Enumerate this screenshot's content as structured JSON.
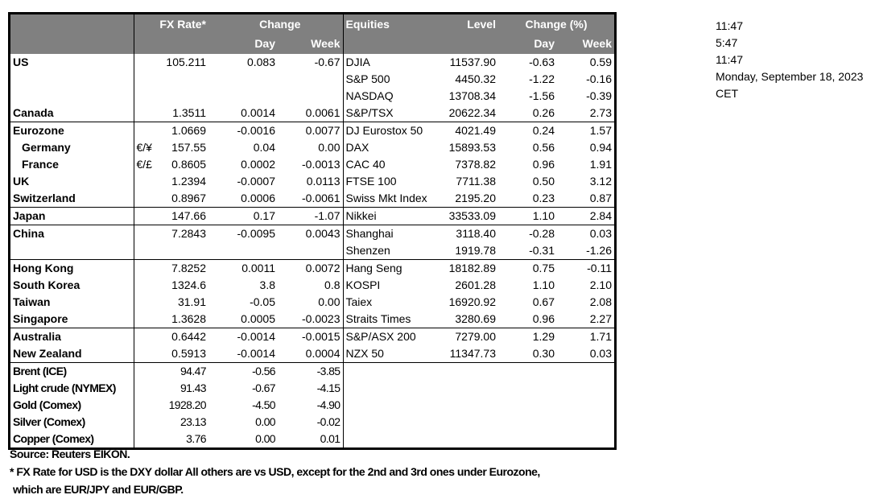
{
  "header": {
    "fx_rate": "FX Rate*",
    "change": "Change",
    "day": "Day",
    "week": "Week",
    "equities": "Equities",
    "level": "Level",
    "change_pct": "Change (%)"
  },
  "groups": [
    {
      "rows": [
        {
          "label": "US",
          "fx": "105.211",
          "day": "0.083",
          "week": "-0.67",
          "eq": "DJIA",
          "level": "11537.90",
          "eq_day": "-0.63",
          "eq_week": "0.59"
        },
        {
          "label": "",
          "fx": "",
          "day": "",
          "week": "",
          "eq": "S&P 500",
          "level": "4450.32",
          "eq_day": "-1.22",
          "eq_week": "-0.16"
        },
        {
          "label": "",
          "fx": "",
          "day": "",
          "week": "",
          "eq": "NASDAQ",
          "level": "13708.34",
          "eq_day": "-1.56",
          "eq_week": "-0.39"
        },
        {
          "label": "Canada",
          "fx": "1.3511",
          "day": "0.0014",
          "week": "0.0061",
          "eq": "S&P/TSX",
          "level": "20622.34",
          "eq_day": "0.26",
          "eq_week": "2.73"
        }
      ]
    },
    {
      "rows": [
        {
          "label": "Eurozone",
          "fx": "1.0669",
          "day": "-0.0016",
          "week": "0.0077",
          "eq": "DJ Eurostox 50",
          "level": "4021.49",
          "eq_day": "0.24",
          "eq_week": "1.57"
        },
        {
          "label": "Germany",
          "indent": true,
          "fx_prefix": "€/¥",
          "fx": "157.55",
          "day": "0.04",
          "week": "0.00",
          "eq": "DAX",
          "level": "15893.53",
          "eq_day": "0.56",
          "eq_week": "0.94"
        },
        {
          "label": "France",
          "indent": true,
          "fx_prefix": "€/£",
          "fx": "0.8605",
          "day": "0.0002",
          "week": "-0.0013",
          "eq": "CAC 40",
          "level": "7378.82",
          "eq_day": "0.96",
          "eq_week": "1.91"
        },
        {
          "label": "UK",
          "fx": "1.2394",
          "day": "-0.0007",
          "week": "0.0113",
          "eq": "FTSE 100",
          "level": "7711.38",
          "eq_day": "0.50",
          "eq_week": "3.12"
        },
        {
          "label": "Switzerland",
          "fx": "0.8967",
          "day": "0.0006",
          "week": "-0.0061",
          "eq": "Swiss Mkt Index",
          "level": "2195.20",
          "eq_day": "0.23",
          "eq_week": "0.87"
        }
      ]
    },
    {
      "rows": [
        {
          "label": "Japan",
          "fx": "147.66",
          "day": "0.17",
          "week": "-1.07",
          "eq": "Nikkei",
          "level": "33533.09",
          "eq_day": "1.10",
          "eq_week": "2.84"
        }
      ]
    },
    {
      "rows": [
        {
          "label": "China",
          "fx": "7.2843",
          "day": "-0.0095",
          "week": "0.0043",
          "eq": "Shanghai",
          "level": "3118.40",
          "eq_day": "-0.28",
          "eq_week": "0.03"
        },
        {
          "label": "",
          "fx": "",
          "day": "",
          "week": "",
          "eq": "Shenzen",
          "level": "1919.78",
          "eq_day": "-0.31",
          "eq_week": "-1.26"
        }
      ]
    },
    {
      "rows": [
        {
          "label": "Hong Kong",
          "fx": "7.8252",
          "day": "0.0011",
          "week": "0.0072",
          "eq": "Hang Seng",
          "level": "18182.89",
          "eq_day": "0.75",
          "eq_week": "-0.11"
        },
        {
          "label": "South Korea",
          "fx": "1324.6",
          "day": "3.8",
          "week": "0.8",
          "eq": "KOSPI",
          "level": "2601.28",
          "eq_day": "1.10",
          "eq_week": "2.10"
        },
        {
          "label": "Taiwan",
          "fx": "31.91",
          "day": "-0.05",
          "week": "0.00",
          "eq": "Taiex",
          "level": "16920.92",
          "eq_day": "0.67",
          "eq_week": "2.08"
        },
        {
          "label": "Singapore",
          "fx": "1.3628",
          "day": "0.0005",
          "week": "-0.0023",
          "eq": "Straits Times",
          "level": "3280.69",
          "eq_day": "0.96",
          "eq_week": "2.27"
        }
      ]
    },
    {
      "rows": [
        {
          "label": "Australia",
          "fx": "0.6442",
          "day": "-0.0014",
          "week": "-0.0015",
          "eq": "S&P/ASX  200",
          "level": "7279.00",
          "eq_day": "1.29",
          "eq_week": "1.71"
        },
        {
          "label": "New Zealand",
          "fx": "0.5913",
          "day": "-0.0014",
          "week": "0.0004",
          "eq": "NZX 50",
          "level": "11347.73",
          "eq_day": "0.30",
          "eq_week": "0.03"
        }
      ]
    },
    {
      "narrow": true,
      "rows": [
        {
          "label": "Brent (ICE)",
          "fx": "94.47",
          "day": "-0.56",
          "week": "-3.85"
        },
        {
          "label": "Light crude (NYMEX)",
          "fx": "91.43",
          "day": "-0.67",
          "week": "-4.15"
        },
        {
          "label": "Gold (Comex)",
          "fx": "1928.20",
          "day": "-4.50",
          "week": "-4.90"
        },
        {
          "label": "Silver (Comex)",
          "fx": "23.13",
          "day": "0.00",
          "week": "-0.02"
        },
        {
          "label": "Copper (Comex)",
          "fx": "3.76",
          "day": "0.00",
          "week": "0.01"
        }
      ]
    }
  ],
  "side": {
    "time1": "11:47",
    "time2": "5:47",
    "time3": "11:47",
    "date": "Monday, September 18, 2023",
    "timezone": "CET"
  },
  "notes": {
    "source": "Source:  Reuters EIKON.",
    "footnote1": "* FX Rate for USD is the DXY dollar  All others are vs USD, except for the 2nd and 3rd ones under Eurozone,",
    "footnote2": "which are EUR/JPY and EUR/GBP."
  },
  "colors": {
    "header_bg": "#808080",
    "header_text": "#ffffff"
  }
}
